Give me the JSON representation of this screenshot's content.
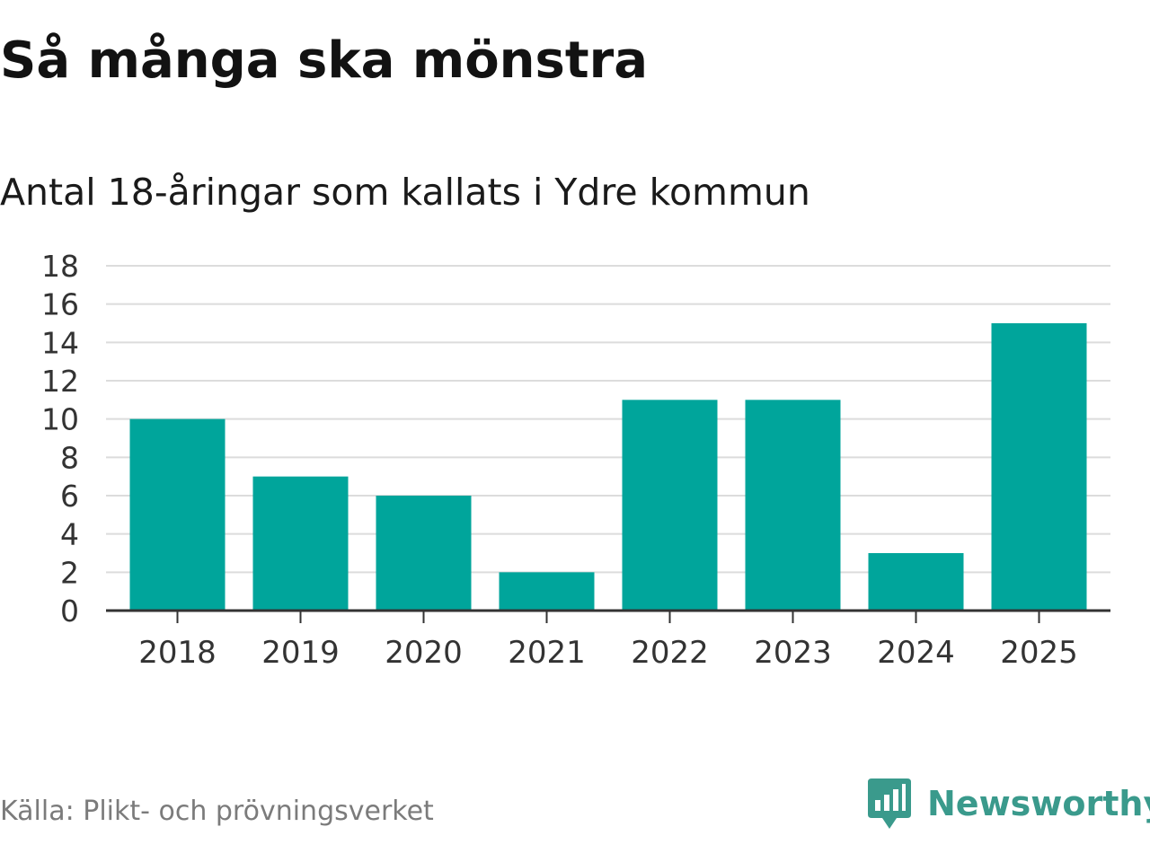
{
  "title": "Så många ska mönstra",
  "subtitle": "Antal 18-åringar som kallats i Ydre kommun",
  "source": "Källa: Plikt- och prövningsverket",
  "brand": {
    "name": "Newsworthy",
    "icon": "newsworthy-chart-bubble-icon",
    "color": "#3a9a8c"
  },
  "colors": {
    "bar": "#00a59b",
    "grid": "#dcdcdc",
    "axis": "#333333",
    "tick_text": "#333333"
  },
  "chart_data": {
    "type": "bar",
    "categories": [
      "2018",
      "2019",
      "2020",
      "2021",
      "2022",
      "2023",
      "2024",
      "2025"
    ],
    "values": [
      10,
      7,
      6,
      2,
      11,
      11,
      3,
      15
    ],
    "ylim": [
      0,
      18
    ],
    "yticks": [
      "0",
      "2",
      "4",
      "6",
      "8",
      "10",
      "12",
      "14",
      "16",
      "18"
    ],
    "xlabel": "",
    "ylabel": "",
    "grid": true,
    "legend": "none"
  }
}
